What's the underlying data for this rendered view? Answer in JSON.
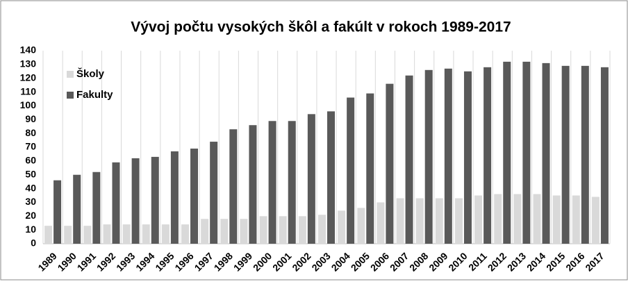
{
  "chart_data": {
    "type": "bar",
    "title": "Vývoj počtu vysokých škôl a fakúlt v rokoch 1989-2017",
    "categories": [
      "1989",
      "1990",
      "1991",
      "1992",
      "1993",
      "1994",
      "1995",
      "1996",
      "1997",
      "1998",
      "1999",
      "2000",
      "2001",
      "2002",
      "2003",
      "2004",
      "2005",
      "2006",
      "2007",
      "2008",
      "2009",
      "2010",
      "2011",
      "2012",
      "2013",
      "2014",
      "2015",
      "2016",
      "2017"
    ],
    "series": [
      {
        "name": "Školy",
        "color": "#d9d9d9",
        "values": [
          13,
          13,
          13,
          14,
          14,
          14,
          14,
          14,
          18,
          18,
          18,
          20,
          20,
          20,
          21,
          24,
          26,
          30,
          33,
          33,
          33,
          33,
          35,
          36,
          36,
          36,
          35,
          35,
          34
        ]
      },
      {
        "name": "Fakulty",
        "color": "#595959",
        "values": [
          46,
          50,
          52,
          59,
          62,
          63,
          67,
          69,
          74,
          83,
          86,
          89,
          89,
          94,
          96,
          106,
          109,
          116,
          122,
          126,
          127,
          125,
          128,
          132,
          132,
          131,
          129,
          129,
          128
        ]
      }
    ],
    "ylim": [
      0,
      140
    ],
    "yticks": [
      0,
      10,
      20,
      30,
      40,
      50,
      60,
      70,
      80,
      90,
      100,
      110,
      120,
      130,
      140
    ],
    "grid": "vertical",
    "legend": "top-left"
  }
}
